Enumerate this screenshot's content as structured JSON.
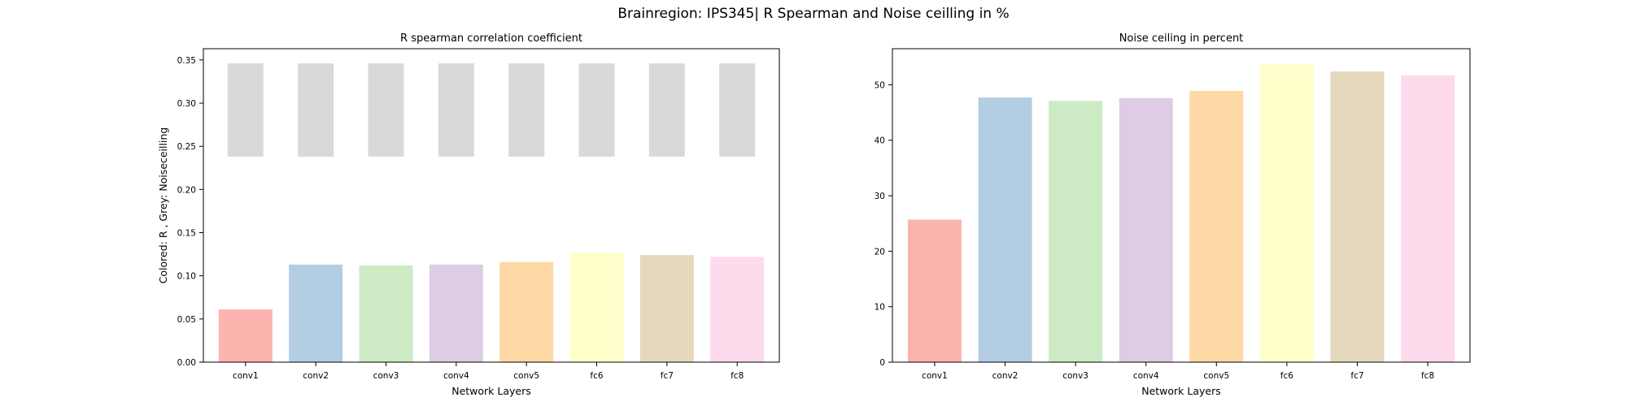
{
  "figure": {
    "title": "Brainregion: IPS345| R Spearman and Noise ceilling in %"
  },
  "colors": [
    "#fbb4ae",
    "#b3cde3",
    "#ccebc5",
    "#decbe4",
    "#fed9a6",
    "#ffffcc",
    "#e5d8bd",
    "#fddaec"
  ],
  "noise_color": "#d9d9d9",
  "chart_data": [
    {
      "type": "bar",
      "title": "R spearman correlation coefficient",
      "xlabel": "Network Layers",
      "ylabel": "Colored: R , Grey: Noiseceilling",
      "categories": [
        "conv1",
        "conv2",
        "conv3",
        "conv4",
        "conv5",
        "fc6",
        "fc7",
        "fc8"
      ],
      "ylim": [
        0,
        0.363
      ],
      "yticks": [
        "0.00",
        "0.05",
        "0.10",
        "0.15",
        "0.20",
        "0.25",
        "0.30",
        "0.35"
      ],
      "grid": false,
      "series": [
        {
          "values": [
            0.061,
            0.113,
            0.112,
            0.113,
            0.116,
            0.127,
            0.124,
            0.122
          ]
        },
        {
          "lower": [
            0.238,
            0.238,
            0.238,
            0.238,
            0.238,
            0.238,
            0.238,
            0.238
          ],
          "upper": [
            0.346,
            0.346,
            0.346,
            0.346,
            0.346,
            0.346,
            0.346,
            0.346
          ]
        }
      ]
    },
    {
      "type": "bar",
      "title": "Noise ceiling in percent",
      "xlabel": "Network Layers",
      "ylabel": "",
      "categories": [
        "conv1",
        "conv2",
        "conv3",
        "conv4",
        "conv5",
        "fc6",
        "fc7",
        "fc8"
      ],
      "ylim": [
        0,
        56.5
      ],
      "yticks": [
        "0",
        "10",
        "20",
        "30",
        "40",
        "50"
      ],
      "grid": false,
      "series": [
        {
          "values": [
            25.7,
            47.7,
            47.1,
            47.6,
            48.9,
            53.7,
            52.4,
            51.7
          ]
        }
      ]
    }
  ]
}
